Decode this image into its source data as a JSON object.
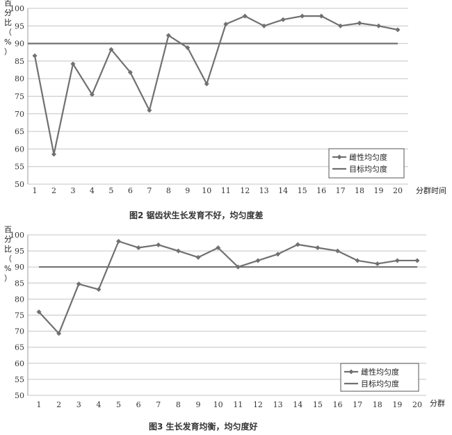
{
  "chart_data": [
    {
      "type": "line",
      "title": "图2 锯齿状生长发育不好，均匀度差",
      "ylabel": "百分比（%）",
      "xlabel": "分群时间",
      "ylim": [
        50,
        100
      ],
      "yticks": [
        "50",
        "55",
        "60",
        "65",
        "70",
        "75",
        "80",
        "85",
        "90",
        "95",
        "100"
      ],
      "categories": [
        "1",
        "2",
        "3",
        "4",
        "5",
        "6",
        "7",
        "8",
        "9",
        "10",
        "11",
        "12",
        "13",
        "14",
        "15",
        "16",
        "17",
        "18",
        "19",
        "20"
      ],
      "grid": true,
      "legend_position": "bottom-right",
      "series": [
        {
          "name": "雌性均匀度",
          "color": "#707070",
          "marker": "diamond",
          "values": [
            86.5,
            58.5,
            84.2,
            75.5,
            88.3,
            81.8,
            71.0,
            92.3,
            88.8,
            78.5,
            95.5,
            97.8,
            95.0,
            96.8,
            97.8,
            97.8,
            95.0,
            95.8,
            95.0,
            93.9
          ]
        },
        {
          "name": "目标均匀度",
          "color": "#707070",
          "marker": "none",
          "values": [
            90,
            90,
            90,
            90,
            90,
            90,
            90,
            90,
            90,
            90,
            90,
            90,
            90,
            90,
            90,
            90,
            90,
            90,
            90,
            90
          ]
        }
      ]
    },
    {
      "type": "line",
      "title": "图3 生长发育均衡，均匀度好",
      "ylabel": "百分比（%）",
      "xlabel": "分群",
      "ylim": [
        50,
        100
      ],
      "yticks": [
        "50",
        "55",
        "60",
        "65",
        "70",
        "75",
        "80",
        "85",
        "90",
        "95",
        "100"
      ],
      "categories": [
        "1",
        "2",
        "3",
        "4",
        "5",
        "6",
        "7",
        "8",
        "9",
        "10",
        "11",
        "12",
        "13",
        "14",
        "15",
        "16",
        "17",
        "18",
        "19",
        "20"
      ],
      "grid": true,
      "legend_position": "bottom-right",
      "series": [
        {
          "name": "雌性均匀度",
          "color": "#707070",
          "marker": "diamond",
          "values": [
            76.0,
            69.3,
            84.7,
            83.0,
            98.0,
            96.0,
            96.9,
            95.0,
            93.0,
            96.0,
            90.0,
            92.0,
            94.0,
            97.0,
            96.0,
            95.0,
            92.0,
            91.0,
            92.0,
            92.0
          ]
        },
        {
          "name": "目标均匀度",
          "color": "#707070",
          "marker": "none",
          "values": [
            90,
            90,
            90,
            90,
            90,
            90,
            90,
            90,
            90,
            90,
            90,
            90,
            90,
            90,
            90,
            90,
            90,
            90,
            90,
            90
          ]
        }
      ]
    }
  ]
}
